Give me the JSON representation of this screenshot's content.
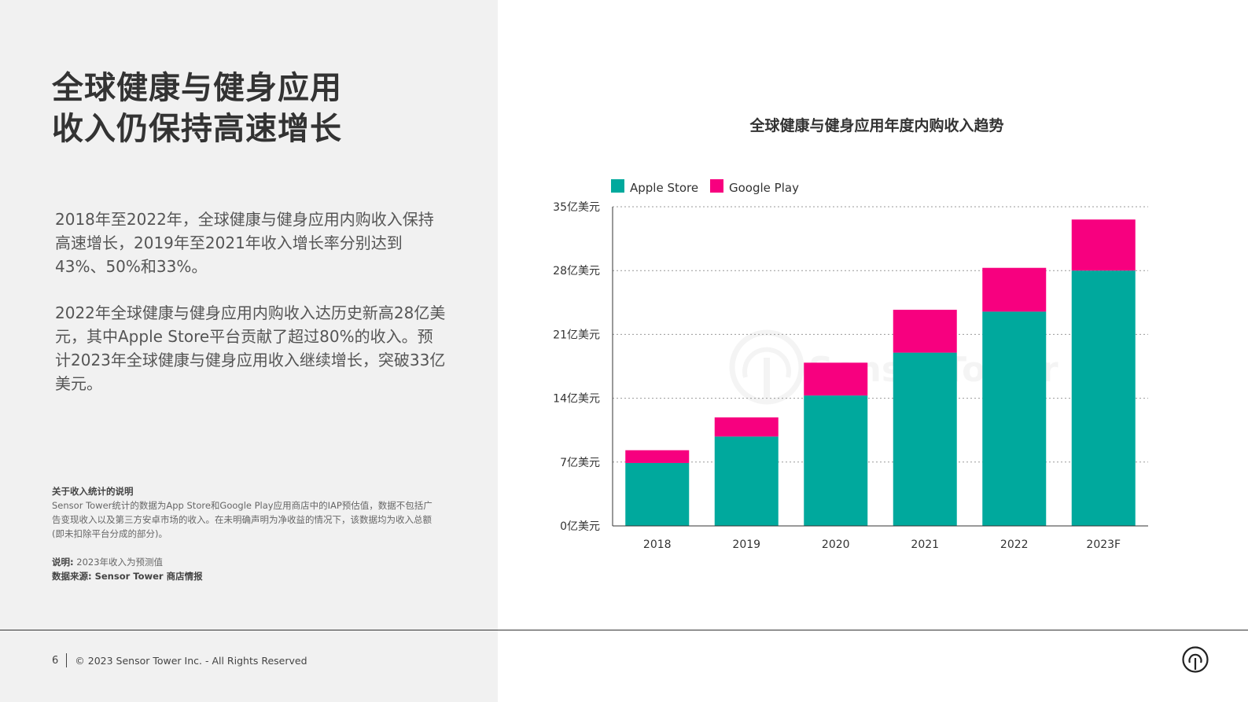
{
  "left": {
    "title_lines": [
      "全球健康与健身应用",
      "收入仍保持高速增长"
    ],
    "para1": "2018年至2022年，全球健康与健身应用内购收入保持高速增长，2019年至2021年收入增长率分别达到43%、50%和33%。",
    "para2": "2022年全球健康与健身应用内购收入达历史新高28亿美元，其中Apple Store平台贡献了超过80%的收入。预计2023年全球健康与健身应用收入继续增长，突破33亿美元。",
    "notes": {
      "heading": "关于收入统计的说明",
      "text": "Sensor Tower统计的数据为App Store和Google Play应用商店中的IAP预估值，数据不包括广告变现收入以及第三方安卓市场的收入。在未明确声明为净收益的情况下，该数据均为收入总额(即未扣除平台分成的部分)。",
      "remark_label": "说明:",
      "remark_text": "2023年收入为预测值",
      "source": "数据来源: Sensor Tower 商店情报"
    }
  },
  "footer": {
    "page_number": "6",
    "copyright": "© 2023 Sensor Tower Inc. - All Rights Reserved"
  },
  "watermark": "SensorTower",
  "chart_data": {
    "type": "bar",
    "stacked": true,
    "title": "全球健康与健身应用年度内购收入趋势",
    "categories": [
      "2018",
      "2019",
      "2020",
      "2021",
      "2022",
      "2023F"
    ],
    "series": [
      {
        "name": "Apple Store",
        "color": "#00a99d",
        "values": [
          6.9,
          9.8,
          14.3,
          19.0,
          23.5,
          28.0
        ]
      },
      {
        "name": "Google Play",
        "color": "#f7007f",
        "values": [
          1.4,
          2.1,
          3.6,
          4.7,
          4.8,
          5.6
        ]
      }
    ],
    "ylim": [
      0,
      35
    ],
    "yticks": [
      0,
      7,
      14,
      21,
      28,
      35
    ],
    "ytick_labels": [
      "0亿美元",
      "7亿美元",
      "14亿美元",
      "21亿美元",
      "28亿美元",
      "35亿美元"
    ],
    "grid": "dotted horizontal",
    "legend_position": "top-left"
  }
}
